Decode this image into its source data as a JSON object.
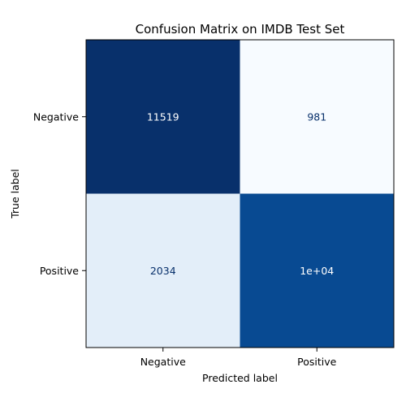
{
  "chart_data": {
    "type": "heatmap",
    "title": "Confusion Matrix on IMDB Test Set",
    "xlabel": "Predicted label",
    "ylabel": "True label",
    "x_categories": [
      "Negative",
      "Positive"
    ],
    "y_categories": [
      "Negative",
      "Positive"
    ],
    "values": [
      [
        11519,
        981
      ],
      [
        2034,
        10466
      ]
    ],
    "value_labels": [
      [
        "11519",
        "981"
      ],
      [
        "2034",
        "1e+04"
      ]
    ],
    "colormap": "Blues",
    "color_low": "#f7fbff",
    "color_high": "#08306b",
    "grid": false,
    "colorbar": false
  }
}
